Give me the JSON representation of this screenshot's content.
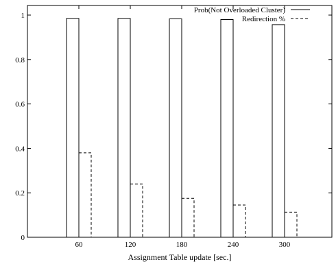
{
  "chart_data": {
    "type": "bar",
    "title": "",
    "xlabel": "Assignment Table update [sec.]",
    "ylabel": "",
    "categories": [
      "60",
      "120",
      "180",
      "240",
      "300"
    ],
    "ylim": [
      0,
      1
    ],
    "yticks": [
      "0",
      "0.2",
      "0.4",
      "0.6",
      "0.8",
      "1"
    ],
    "grid": false,
    "legend_position": "top-right",
    "series": [
      {
        "name": "Prob(Not Overloaded Cluster)",
        "style": "solid",
        "values": [
          0.985,
          0.985,
          0.983,
          0.98,
          0.957
        ]
      },
      {
        "name": "Redirection %",
        "style": "dashed",
        "values": [
          0.38,
          0.24,
          0.175,
          0.145,
          0.113
        ]
      }
    ]
  }
}
